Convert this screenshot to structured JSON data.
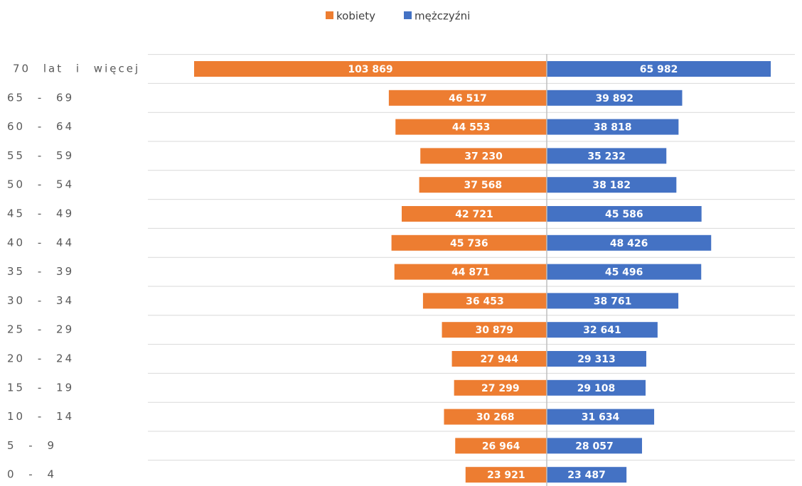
{
  "chart_data": {
    "type": "pyramid",
    "categories": [
      "70 lat i więcej",
      "65 - 69",
      "60 - 64",
      "55 - 59",
      "50 - 54",
      "45 - 49",
      "40 - 44",
      "35 - 39",
      "30 - 34",
      "25 - 29",
      "20 - 24",
      "15 - 19",
      "10 - 14",
      "5 - 9",
      "0 - 4"
    ],
    "series": [
      {
        "name": "kobiety",
        "color": "#ed7d31",
        "values": [
          103869,
          46517,
          44553,
          37230,
          37568,
          42721,
          45736,
          44871,
          36453,
          30879,
          27944,
          27299,
          30268,
          26964,
          23921
        ],
        "value_labels": [
          "103 869",
          "46 517",
          "44 553",
          "37 230",
          "37 568",
          "42 721",
          "45 736",
          "44 871",
          "36 453",
          "30 879",
          "27 944",
          "27 299",
          "30 268",
          "26 964",
          "23 921"
        ]
      },
      {
        "name": "mężczyźni",
        "color": "#4472c4",
        "values": [
          65982,
          39892,
          38818,
          35232,
          38182,
          45586,
          48426,
          45496,
          38761,
          32641,
          29313,
          29108,
          31634,
          28057,
          23487
        ],
        "value_labels": [
          "65 982",
          "39 892",
          "38 818",
          "35 232",
          "38 182",
          "45 586",
          "48 426",
          "45 496",
          "38 761",
          "32 641",
          "29 313",
          "29 108",
          "31 634",
          "28 057",
          "23 487"
        ]
      }
    ],
    "legend": "top",
    "grid": true
  }
}
